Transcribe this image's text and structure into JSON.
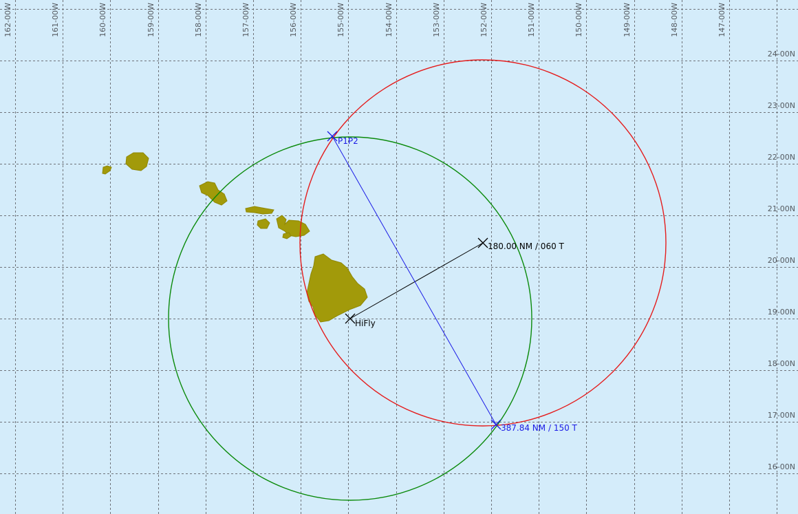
{
  "map": {
    "background_color": "#d4ecfa",
    "grid_color": "#6d7178",
    "land_color": "#a29a0a",
    "longitude_labels": [
      "162-00W",
      "161-00W",
      "160-00W",
      "159-00W",
      "158-00W",
      "157-00W",
      "156-00W",
      "155-00W",
      "154-00W",
      "153-00W",
      "152-00W",
      "151-00W",
      "150-00W",
      "149-00W",
      "148-00W",
      "147-00W"
    ],
    "latitude_labels": [
      "24-00N",
      "23-00N",
      "22-00N",
      "21-00N",
      "20-00N",
      "19-00N",
      "18-00N",
      "17-00N",
      "16-00N"
    ]
  },
  "waypoints": {
    "origin": {
      "label": "HiFly",
      "color": "#000000"
    },
    "projection": {
      "label": "180.00 NM / 060 T",
      "color": "#000000"
    },
    "intersection_1": {
      "label": "P1P2",
      "color": "#1a1ae6"
    },
    "intersection_2": {
      "label": "387.84 NM / 150 T",
      "color": "#1a1ae6"
    }
  },
  "circles": {
    "green": {
      "name": "range circle",
      "color": "#0a8a0a"
    },
    "red": {
      "name": "range circle",
      "color": "#e51c1c"
    }
  },
  "lines": {
    "bearing_line": {
      "color": "#000000"
    },
    "chord_line": {
      "color": "#1a1ae6"
    }
  },
  "islands": [
    "Niihau",
    "Kauai",
    "Oahu",
    "Molokai",
    "Lanai",
    "Maui",
    "Hawaii"
  ]
}
